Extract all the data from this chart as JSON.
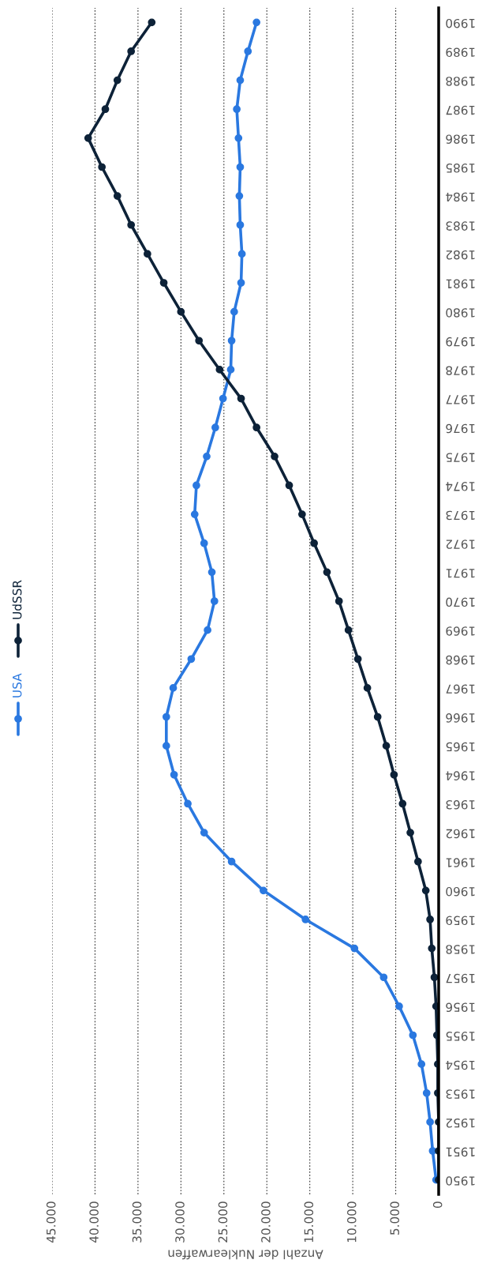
{
  "chart_data": {
    "type": "line",
    "orientation": "horizontal",
    "categories": [
      "1990",
      "1989",
      "1988",
      "1987",
      "1986",
      "1985",
      "1984",
      "1983",
      "1982",
      "1981",
      "1980",
      "1979",
      "1978",
      "1977",
      "1976",
      "1975",
      "1974",
      "1973",
      "1972",
      "1971",
      "1970",
      "1969",
      "1968",
      "1967",
      "1966",
      "1965",
      "1964",
      "1963",
      "1962",
      "1961",
      "1960",
      "1959",
      "1958",
      "1957",
      "1956",
      "1955",
      "1954",
      "1953",
      "1952",
      "1951",
      "1950"
    ],
    "series": [
      {
        "name": "USA",
        "color": "#2a78e0",
        "values": [
          21200,
          22200,
          23100,
          23500,
          23300,
          23100,
          23200,
          23100,
          22900,
          23000,
          23800,
          24100,
          24200,
          25100,
          26000,
          27000,
          28200,
          28400,
          27300,
          26400,
          26100,
          26900,
          28800,
          30900,
          31700,
          31700,
          30800,
          29200,
          27300,
          24100,
          20400,
          15500,
          9800,
          6400,
          4600,
          3000,
          2000,
          1400,
          1000,
          700,
          300
        ]
      },
      {
        "name": "UdSSR",
        "color": "#0d2238",
        "values": [
          33400,
          35800,
          37400,
          38800,
          40800,
          39200,
          37400,
          35800,
          33900,
          32000,
          30000,
          27900,
          25500,
          23000,
          21200,
          19100,
          17400,
          15900,
          14500,
          13000,
          11600,
          10500,
          9400,
          8300,
          7100,
          6100,
          5200,
          4200,
          3300,
          2400,
          1500,
          1000,
          800,
          500,
          300,
          200,
          100,
          100,
          0,
          0,
          0
        ]
      }
    ],
    "xlabel": "Anzahl der Nuklearwaffen",
    "xlim": [
      45000,
      0
    ],
    "xticks": [
      0,
      {
        "value": 5000,
        "label": "5.000"
      },
      {
        "value": 10000,
        "label": "10.000"
      },
      {
        "value": 15000,
        "label": "15.000"
      },
      {
        "value": 20000,
        "label": "20.000"
      },
      {
        "value": 25000,
        "label": "25.000"
      },
      {
        "value": 30000,
        "label": "30.000"
      },
      {
        "value": 35000,
        "label": "35.000"
      },
      {
        "value": 40000,
        "label": "40.000"
      },
      {
        "value": 45000,
        "label": "45.000"
      }
    ],
    "grid": "x",
    "legend": "left",
    "marker": "circle",
    "line_style": "solid"
  }
}
